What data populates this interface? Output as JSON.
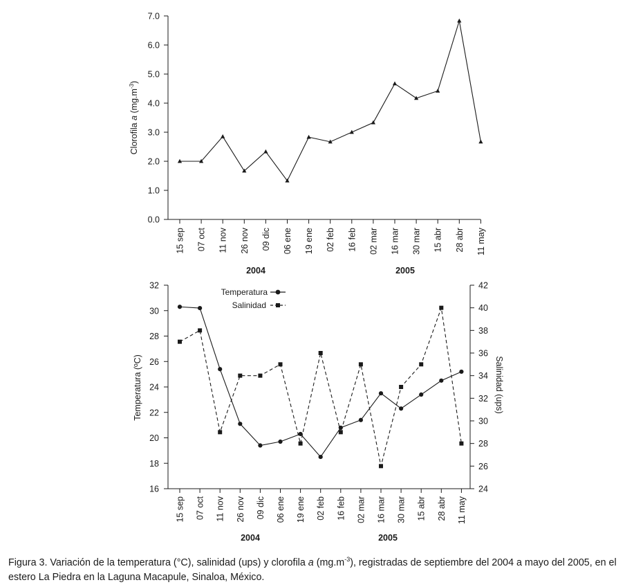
{
  "chart_data": [
    {
      "type": "line",
      "categories": [
        "15 sep",
        "07 oct",
        "11 nov",
        "26 nov",
        "09 dic",
        "06 ene",
        "19 ene",
        "02 feb",
        "16 feb",
        "02 mar",
        "16 mar",
        "30 mar",
        "15 abr",
        "28 abr",
        "11 may"
      ],
      "year_labels": [
        "2004",
        "2005"
      ],
      "ylabel": "Clorofila a (mg.m-3)",
      "ylim": [
        0,
        7
      ],
      "yticks": [
        "0.0",
        "1.0",
        "2.0",
        "3.0",
        "4.0",
        "5.0",
        "6.0",
        "7.0"
      ],
      "grid": false,
      "series": [
        {
          "values": [
            2.0,
            2.0,
            2.85,
            1.67,
            2.33,
            1.33,
            2.83,
            2.67,
            3.0,
            3.33,
            4.67,
            4.17,
            4.42,
            6.83,
            2.67
          ],
          "marker": "triangle",
          "dash": "solid"
        }
      ]
    },
    {
      "type": "line",
      "categories": [
        "15 sep",
        "07 oct",
        "11 nov",
        "26 nov",
        "09 dic",
        "06 ene",
        "19 ene",
        "02 feb",
        "16 feb",
        "02 mar",
        "16 mar",
        "30 mar",
        "15 abr",
        "28 abr",
        "11 may"
      ],
      "year_labels": [
        "2004",
        "2005"
      ],
      "ylabel": "Temperatura (ºC)",
      "ylabel_right": "Salinidad (ups)",
      "ylim": [
        16,
        32
      ],
      "ylim_right": [
        24,
        42
      ],
      "yticks": [
        "16",
        "18",
        "20",
        "22",
        "24",
        "26",
        "28",
        "30",
        "32"
      ],
      "yticks_right": [
        "24",
        "26",
        "28",
        "30",
        "32",
        "34",
        "36",
        "38",
        "40",
        "42"
      ],
      "legend_position": "top-left",
      "grid": false,
      "series": [
        {
          "name": "Temperatura",
          "axis": "left",
          "marker": "circle",
          "dash": "solid",
          "values": [
            30.3,
            30.2,
            25.4,
            21.1,
            19.4,
            19.7,
            20.3,
            18.5,
            20.8,
            21.4,
            23.5,
            22.3,
            23.4,
            24.5,
            25.2
          ]
        },
        {
          "name": "Salinidad",
          "axis": "right",
          "marker": "square",
          "dash": "dashed",
          "values": [
            37,
            38,
            29,
            34,
            34,
            35,
            28,
            36,
            29,
            35,
            26,
            33,
            35,
            40,
            28
          ]
        }
      ]
    }
  ],
  "caption": {
    "part1": "Figura 3. Variación de la temperatura (°C), salinidad (ups) y clorofila ",
    "italic": "a",
    "part2": " (mg.m",
    "sup": "-3",
    "part3": "), registradas de septiembre del 2004 a mayo del 2005, en el estero La Piedra en la Laguna Macapule, Sinaloa, México."
  }
}
